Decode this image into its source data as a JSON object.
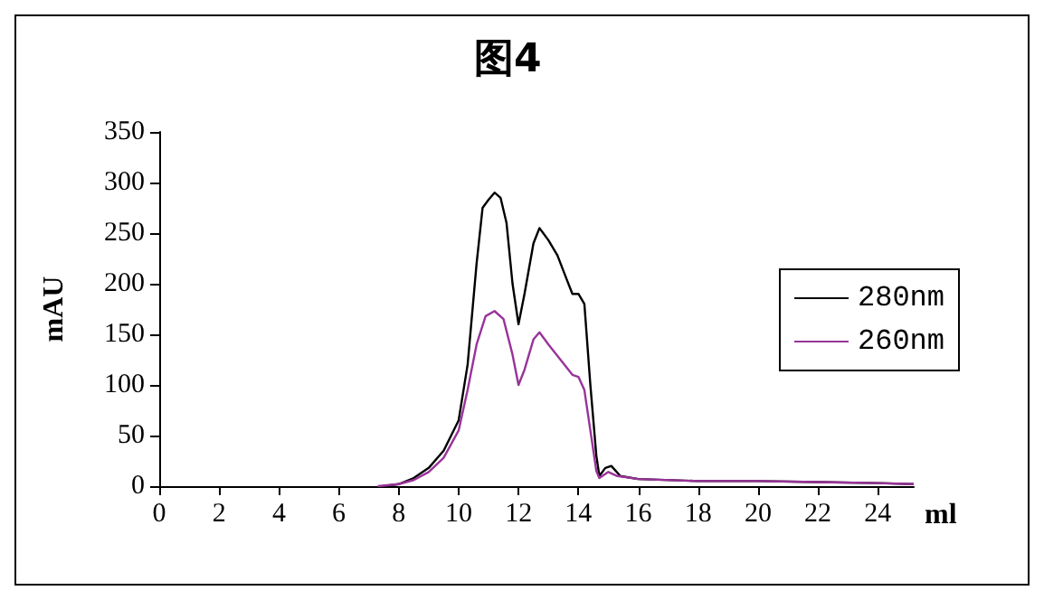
{
  "chart_data": {
    "type": "line",
    "title": "图4",
    "xlabel": "ml",
    "ylabel": "mAU",
    "xlim": [
      0,
      25.2
    ],
    "xticks": [
      0,
      2,
      4,
      6,
      8,
      10,
      12,
      14,
      16,
      18,
      20,
      22,
      24
    ],
    "ylim": [
      0,
      350
    ],
    "yticks": [
      0,
      50,
      100,
      150,
      200,
      250,
      300,
      350
    ],
    "grid": false,
    "legend": "right",
    "marker": "none",
    "line_style": "solid",
    "series": [
      {
        "name": "280nm",
        "color": "#000000",
        "x": [
          7.5,
          8,
          8.5,
          9,
          9.5,
          10,
          10.3,
          10.6,
          10.8,
          11,
          11.2,
          11.4,
          11.6,
          11.8,
          12,
          12.2,
          12.5,
          12.7,
          13,
          13.3,
          13.6,
          13.8,
          14,
          14.2,
          14.4,
          14.6,
          14.7,
          14.9,
          15.1,
          15.4,
          16,
          18,
          20,
          22,
          24,
          25.2
        ],
        "values": [
          0,
          2,
          8,
          18,
          35,
          65,
          120,
          220,
          275,
          283,
          290,
          285,
          260,
          200,
          160,
          190,
          240,
          255,
          243,
          228,
          205,
          190,
          190,
          180,
          100,
          30,
          10,
          18,
          20,
          10,
          7,
          5,
          5,
          4,
          3,
          2
        ]
      },
      {
        "name": "260nm",
        "color": "#993399",
        "x": [
          7.3,
          8,
          8.5,
          9,
          9.5,
          10,
          10.3,
          10.6,
          10.9,
          11.2,
          11.5,
          11.8,
          12,
          12.2,
          12.5,
          12.7,
          13,
          13.4,
          13.8,
          14,
          14.2,
          14.4,
          14.6,
          14.7,
          15,
          15.3,
          16,
          18,
          20,
          22,
          24,
          25.2
        ],
        "values": [
          0,
          2,
          6,
          14,
          28,
          55,
          95,
          140,
          168,
          173,
          165,
          130,
          100,
          115,
          145,
          152,
          140,
          125,
          110,
          108,
          95,
          55,
          15,
          8,
          14,
          10,
          7,
          5,
          5,
          4,
          3,
          2
        ]
      }
    ]
  }
}
